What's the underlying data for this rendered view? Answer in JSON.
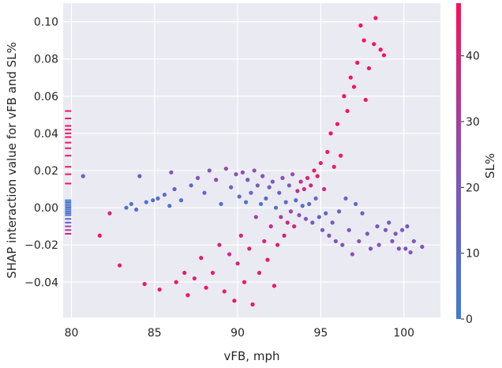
{
  "chart_data": {
    "type": "scatter",
    "title": "",
    "xlabel": "vFB, mph",
    "ylabel": "SHAP interaction value for vFB and SL%",
    "xlim": [
      79.5,
      102.2
    ],
    "ylim": [
      -0.059,
      0.11
    ],
    "xticks": [
      80,
      85,
      90,
      95,
      100
    ],
    "yticks": [
      -0.04,
      -0.02,
      0.0,
      0.02,
      0.04,
      0.06,
      0.08,
      0.1
    ],
    "ytick_labels": [
      "−0.04",
      "−0.02",
      "0.00",
      "0.02",
      "0.04",
      "0.06",
      "0.08",
      "0.10"
    ],
    "grid": true,
    "background": "#eaeaf2",
    "colorbar": {
      "label": "SL%",
      "min": 0,
      "max": 48,
      "ticks": [
        0,
        10,
        20,
        30,
        40
      ],
      "low_color": "#3b7fd4",
      "mid_color": "#8a4fb8",
      "high_color": "#ff0d57"
    },
    "series": [
      {
        "color_by": "SL%",
        "points": [
          [
            80.7,
            0.017,
            18
          ],
          [
            81.7,
            -0.015,
            44
          ],
          [
            82.3,
            -0.003,
            40
          ],
          [
            82.9,
            -0.031,
            42
          ],
          [
            83.3,
            0.0,
            6
          ],
          [
            83.6,
            0.002,
            4
          ],
          [
            83.9,
            -0.001,
            10
          ],
          [
            84.1,
            0.017,
            20
          ],
          [
            84.5,
            0.003,
            6
          ],
          [
            84.4,
            -0.041,
            44
          ],
          [
            84.9,
            0.004,
            5
          ],
          [
            85.2,
            0.005,
            8
          ],
          [
            85.3,
            -0.044,
            44
          ],
          [
            85.6,
            0.007,
            9
          ],
          [
            85.9,
            0.001,
            6
          ],
          [
            86.0,
            0.019,
            22
          ],
          [
            86.2,
            0.01,
            18
          ],
          [
            86.3,
            -0.04,
            45
          ],
          [
            86.6,
            0.004,
            7
          ],
          [
            86.8,
            -0.035,
            42
          ],
          [
            87.0,
            -0.047,
            44
          ],
          [
            87.2,
            0.012,
            14
          ],
          [
            87.4,
            -0.038,
            40
          ],
          [
            87.6,
            0.016,
            22
          ],
          [
            87.8,
            -0.027,
            42
          ],
          [
            88.0,
            0.008,
            12
          ],
          [
            88.1,
            -0.043,
            44
          ],
          [
            88.3,
            0.02,
            24
          ],
          [
            88.5,
            -0.035,
            42
          ],
          [
            88.7,
            0.015,
            25
          ],
          [
            88.9,
            -0.02,
            40
          ],
          [
            89.0,
            0.002,
            8
          ],
          [
            89.2,
            -0.045,
            42
          ],
          [
            89.3,
            0.021,
            26
          ],
          [
            89.5,
            -0.025,
            38
          ],
          [
            89.6,
            0.011,
            15
          ],
          [
            89.8,
            -0.05,
            44
          ],
          [
            89.9,
            0.018,
            22
          ],
          [
            90.0,
            -0.03,
            40
          ],
          [
            90.1,
            0.006,
            8
          ],
          [
            90.2,
            -0.015,
            38
          ],
          [
            90.3,
            0.019,
            24
          ],
          [
            90.4,
            -0.04,
            44
          ],
          [
            90.5,
            0.003,
            6
          ],
          [
            90.6,
            0.015,
            20
          ],
          [
            90.7,
            -0.022,
            40
          ],
          [
            90.8,
            0.008,
            12
          ],
          [
            90.9,
            -0.052,
            44
          ],
          [
            91.0,
            0.02,
            25
          ],
          [
            91.1,
            -0.005,
            30
          ],
          [
            91.2,
            0.012,
            18
          ],
          [
            91.3,
            -0.035,
            42
          ],
          [
            91.4,
            0.002,
            5
          ],
          [
            91.5,
            0.017,
            22
          ],
          [
            91.6,
            -0.018,
            40
          ],
          [
            91.7,
            0.005,
            10
          ],
          [
            91.8,
            -0.028,
            44
          ],
          [
            91.9,
            0.011,
            16
          ],
          [
            92.0,
            -0.01,
            36
          ],
          [
            92.1,
            0.014,
            20
          ],
          [
            92.2,
            -0.042,
            44
          ],
          [
            92.3,
            0.0,
            6
          ],
          [
            92.4,
            -0.02,
            42
          ],
          [
            92.5,
            0.008,
            14
          ],
          [
            92.6,
            -0.005,
            32
          ],
          [
            92.7,
            0.016,
            24
          ],
          [
            92.8,
            -0.015,
            40
          ],
          [
            92.9,
            0.003,
            9
          ],
          [
            93.0,
            -0.008,
            38
          ],
          [
            93.1,
            0.012,
            18
          ],
          [
            93.2,
            -0.002,
            28
          ],
          [
            93.3,
            0.018,
            26
          ],
          [
            93.4,
            -0.01,
            40
          ],
          [
            93.5,
            0.004,
            12
          ],
          [
            93.6,
            0.009,
            34
          ],
          [
            93.7,
            -0.004,
            22
          ],
          [
            93.8,
            0.014,
            38
          ],
          [
            93.9,
            0.001,
            8
          ],
          [
            94.0,
            0.01,
            36
          ],
          [
            94.1,
            -0.006,
            20
          ],
          [
            94.2,
            0.016,
            40
          ],
          [
            94.3,
            0.002,
            10
          ],
          [
            94.4,
            0.012,
            38
          ],
          [
            94.5,
            -0.008,
            18
          ],
          [
            94.6,
            0.02,
            42
          ],
          [
            94.7,
            0.005,
            14
          ],
          [
            94.8,
            0.017,
            44
          ],
          [
            94.9,
            -0.005,
            16
          ],
          [
            95.0,
            0.024,
            40
          ],
          [
            95.1,
            -0.012,
            20
          ],
          [
            95.2,
            0.01,
            38
          ],
          [
            95.3,
            -0.003,
            12
          ],
          [
            95.4,
            0.03,
            44
          ],
          [
            95.5,
            -0.015,
            22
          ],
          [
            95.6,
            0.04,
            46
          ],
          [
            95.7,
            -0.008,
            18
          ],
          [
            95.8,
            0.022,
            42
          ],
          [
            95.9,
            -0.018,
            24
          ],
          [
            96.0,
            0.045,
            46
          ],
          [
            96.1,
            -0.002,
            14
          ],
          [
            96.2,
            0.028,
            44
          ],
          [
            96.3,
            -0.02,
            22
          ],
          [
            96.4,
            0.06,
            46
          ],
          [
            96.5,
            0.005,
            12
          ],
          [
            96.6,
            0.052,
            46
          ],
          [
            96.7,
            -0.012,
            20
          ],
          [
            96.8,
            0.07,
            46
          ],
          [
            96.9,
            -0.025,
            24
          ],
          [
            97.0,
            0.065,
            46
          ],
          [
            97.1,
            0.002,
            10
          ],
          [
            97.2,
            0.078,
            46
          ],
          [
            97.3,
            -0.018,
            22
          ],
          [
            97.4,
            0.098,
            47
          ],
          [
            97.5,
            -0.003,
            16
          ],
          [
            97.6,
            0.09,
            46
          ],
          [
            97.7,
            0.058,
            46
          ],
          [
            97.8,
            -0.014,
            20
          ],
          [
            97.9,
            0.075,
            46
          ],
          [
            98.0,
            -0.022,
            22
          ],
          [
            98.2,
            0.088,
            46
          ],
          [
            98.3,
            0.102,
            47
          ],
          [
            98.4,
            -0.01,
            18
          ],
          [
            98.5,
            -0.02,
            22
          ],
          [
            98.6,
            0.085,
            46
          ],
          [
            98.8,
            0.082,
            46
          ],
          [
            98.9,
            -0.012,
            20
          ],
          [
            99.1,
            -0.008,
            16
          ],
          [
            99.3,
            -0.018,
            22
          ],
          [
            99.5,
            -0.014,
            20
          ],
          [
            99.7,
            -0.022,
            22
          ],
          [
            99.9,
            -0.012,
            18
          ],
          [
            100.1,
            -0.022,
            22
          ],
          [
            100.2,
            -0.01,
            18
          ],
          [
            100.4,
            -0.024,
            22
          ],
          [
            100.6,
            -0.018,
            20
          ],
          [
            101.1,
            -0.021,
            22
          ]
        ]
      }
    ],
    "rug_x": 79.8,
    "rug": [
      [
        0.052,
        45
      ],
      [
        0.048,
        44
      ],
      [
        0.044,
        46
      ],
      [
        0.042,
        45
      ],
      [
        0.04,
        44
      ],
      [
        0.038,
        46
      ],
      [
        0.035,
        44
      ],
      [
        0.032,
        45
      ],
      [
        0.028,
        44
      ],
      [
        0.022,
        45
      ],
      [
        0.018,
        44
      ],
      [
        0.013,
        45
      ],
      [
        0.004,
        3
      ],
      [
        0.003,
        5
      ],
      [
        0.002,
        4
      ],
      [
        0.001,
        6
      ],
      [
        0.0,
        5
      ],
      [
        -0.001,
        4
      ],
      [
        -0.002,
        7
      ],
      [
        -0.003,
        6
      ],
      [
        -0.004,
        8
      ],
      [
        -0.006,
        10
      ],
      [
        -0.008,
        18
      ],
      [
        -0.01,
        25
      ],
      [
        -0.012,
        30
      ],
      [
        -0.014,
        40
      ]
    ]
  }
}
